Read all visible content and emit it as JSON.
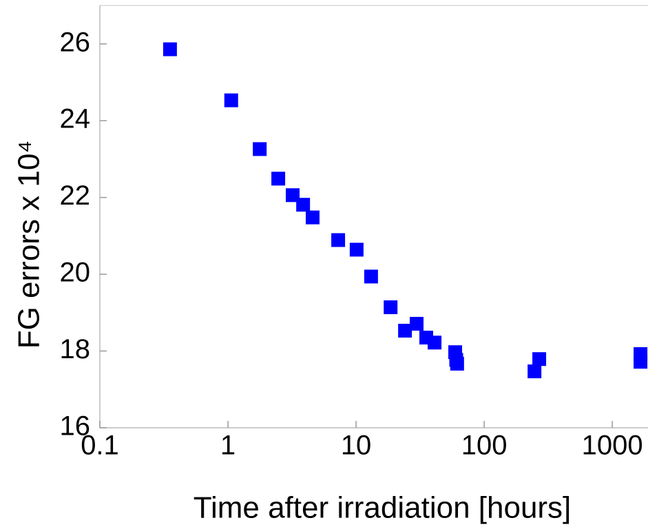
{
  "chart_data": {
    "type": "scatter",
    "xlabel": "Time after irradiation [hours]",
    "ylabel": "FG errors x 10⁴",
    "xscale": "log",
    "color": "#0000ff",
    "x": [
      0.353,
      1.06,
      1.77,
      2.47,
      3.2,
      3.86,
      4.58,
      7.25,
      10.1,
      13.1,
      18.6,
      24.1,
      29.7,
      35.3,
      41,
      59.4,
      60.5,
      61.5,
      247,
      269,
      1660,
      1660
    ],
    "values": [
      25.86,
      24.53,
      23.26,
      22.49,
      22.06,
      21.81,
      21.48,
      20.89,
      20.64,
      19.94,
      19.14,
      18.53,
      18.71,
      18.35,
      18.22,
      17.97,
      17.77,
      17.67,
      17.47,
      17.79,
      17.92,
      17.72
    ],
    "xlim": [
      0.1,
      1900
    ],
    "ylim": [
      16,
      27
    ],
    "xticks": [
      0.1,
      1,
      10,
      100,
      1000
    ],
    "yticks": [
      16,
      18,
      20,
      22,
      24,
      26
    ]
  }
}
